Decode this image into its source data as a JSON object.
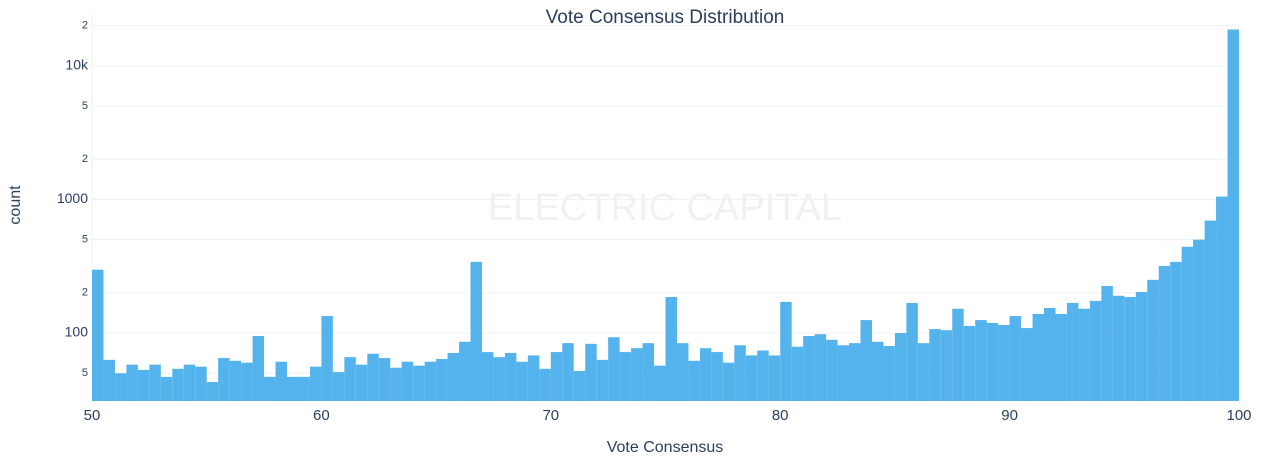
{
  "chart_data": {
    "type": "histogram",
    "title": "Vote Consensus Distribution",
    "x_label": "Vote Consensus",
    "y_label": "count",
    "watermark": "ELECTRIC CAPITAL",
    "color": "#54b3ec",
    "log_y": true,
    "grid": true,
    "bins": [
      50,
      50.5,
      51,
      51.5,
      52,
      52.5,
      53,
      53.5,
      54,
      54.5,
      55,
      55.5,
      56,
      56.5,
      57,
      57.5,
      58,
      58.5,
      59,
      59.5,
      60,
      60.5,
      61,
      61.5,
      62,
      62.5,
      63,
      63.5,
      64,
      64.5,
      65,
      65.5,
      66,
      66.5,
      67,
      67.5,
      68,
      68.5,
      69,
      69.5,
      70,
      70.5,
      71,
      71.5,
      72,
      72.5,
      73,
      73.5,
      74,
      74.5,
      75,
      75.5,
      76,
      76.5,
      77,
      77.5,
      78,
      78.5,
      79,
      79.5,
      80,
      80.5,
      81,
      81.5,
      82,
      82.5,
      83,
      83.5,
      84,
      84.5,
      85,
      85.5,
      86,
      86.5,
      87,
      87.5,
      88,
      88.5,
      89,
      89.5,
      90,
      90.5,
      91,
      91.5,
      92,
      92.5,
      93,
      93.5,
      94,
      94.5,
      95,
      95.5,
      96,
      96.5,
      97,
      97.5,
      98,
      98.5,
      99,
      99.5,
      100
    ],
    "values": [
      298,
      63,
      50,
      58,
      53,
      58,
      47,
      54,
      58,
      56,
      43,
      65,
      62,
      60,
      95,
      47,
      61,
      47,
      47,
      56,
      134,
      51,
      66,
      58,
      70,
      65,
      55,
      61,
      57,
      61,
      64,
      71,
      86,
      341,
      72,
      66,
      71,
      61,
      68,
      54,
      72,
      84,
      52,
      83,
      63,
      93,
      72,
      77,
      84,
      57,
      186,
      84,
      62,
      77,
      72,
      60,
      81,
      68,
      74,
      68,
      171,
      79,
      95,
      98,
      89,
      81,
      84,
      125,
      86,
      80,
      100,
      168,
      84,
      107,
      105,
      152,
      113,
      125,
      119,
      115,
      134,
      109,
      139,
      154,
      139,
      168,
      152,
      174,
      225,
      190,
      186,
      203,
      250,
      318,
      341,
      442,
      500,
      694,
      1050,
      18700
    ],
    "xlim": [
      50,
      100
    ],
    "xticks": [
      50,
      60,
      70,
      80,
      90,
      100
    ],
    "ylim": [
      31,
      24000
    ],
    "yticks": [
      {
        "value": 50,
        "label": "5"
      },
      100,
      {
        "value": 200,
        "label": "2"
      },
      {
        "value": 500,
        "label": "5"
      },
      1000,
      {
        "value": 2000,
        "label": "2"
      },
      {
        "value": 5000,
        "label": "5"
      },
      {
        "value": 10000,
        "label": "10k"
      },
      {
        "value": 20000,
        "label": "2"
      }
    ]
  }
}
